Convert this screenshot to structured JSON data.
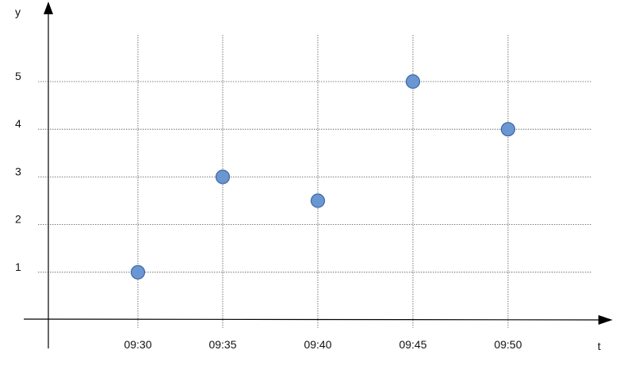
{
  "chart_data": {
    "type": "scatter",
    "title": "",
    "xlabel": "t",
    "ylabel": "y",
    "x": [
      "09:30",
      "09:35",
      "09:40",
      "09:45",
      "09:50"
    ],
    "y": [
      1.0,
      3.0,
      2.5,
      5.0,
      4.0
    ],
    "x_tick_labels": [
      "09:30",
      "09:35",
      "09:40",
      "09:45",
      "09:50"
    ],
    "y_tick_labels": [
      "1",
      "2",
      "3",
      "4",
      "5"
    ],
    "ylim": [
      0,
      5
    ],
    "grid": "dotted",
    "legend": "none",
    "marker_color": "#6a97d2",
    "marker_edge_color": "#3c66a0"
  }
}
